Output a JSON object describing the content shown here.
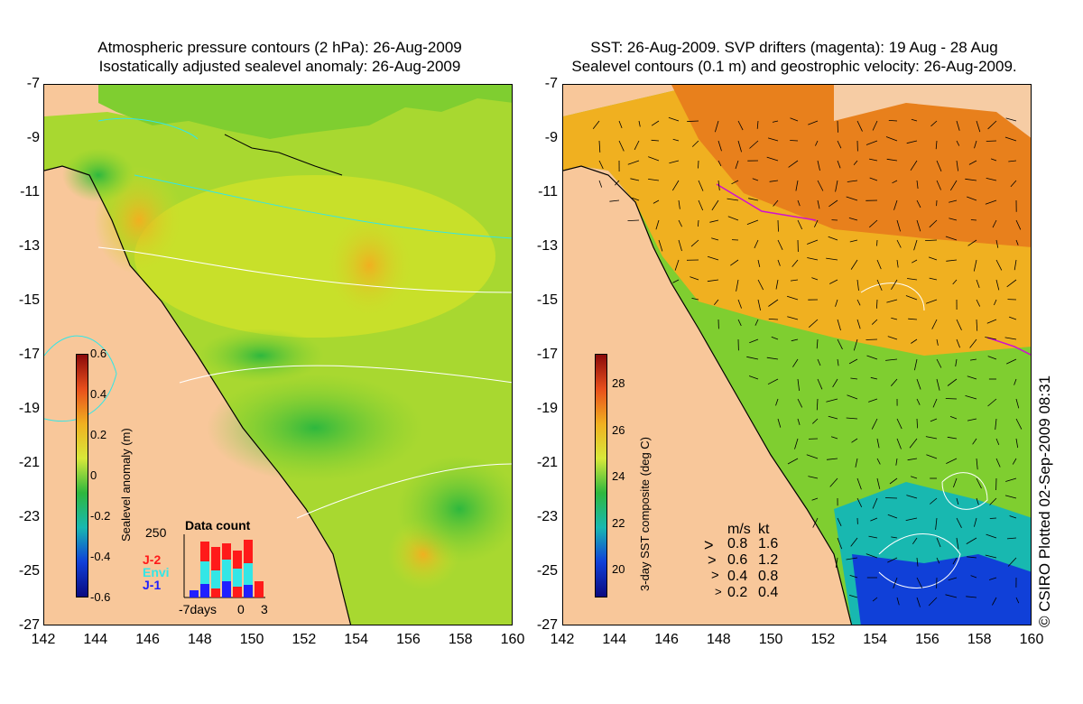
{
  "left_panel": {
    "title_line1": "Atmospheric pressure contours (2 hPa): 26-Aug-2009",
    "title_line2": "Isostatically adjusted sealevel anomaly: 26-Aug-2009",
    "colorbar": {
      "title": "Sealevel anomaly (m)",
      "ticks": [
        "0.6",
        "0.4",
        "0.2",
        "0",
        "-0.2",
        "-0.4",
        "-0.6"
      ],
      "colors": [
        "#8b0a0a",
        "#e8501c",
        "#f0b020",
        "#d8e83a",
        "#2eb83e",
        "#18b8b0",
        "#1040d8",
        "#0a0a80"
      ]
    },
    "data_count": {
      "title": "Data count",
      "max_label": "250",
      "x_labels": [
        "-7days",
        "0",
        "3"
      ],
      "missions": [
        {
          "name": "J-2",
          "color": "#ff1a1a"
        },
        {
          "name": "Envi",
          "color": "#33e6e6"
        },
        {
          "name": "J-1",
          "color": "#2020ff"
        }
      ]
    }
  },
  "right_panel": {
    "title_line1": "SST: 26-Aug-2009. SVP drifters (magenta): 19 Aug - 28 Aug",
    "title_line2": "Sealevel contours (0.1 m) and geostrophic velocity: 26-Aug-2009.",
    "colorbar": {
      "title": "3-day SST composite (deg C)",
      "ticks": [
        "28",
        "26",
        "24",
        "22",
        "20"
      ],
      "colors": [
        "#8b0a0a",
        "#e8501c",
        "#f0b020",
        "#d8e83a",
        "#2eb83e",
        "#18b8b0",
        "#1040d8",
        "#0a0a80"
      ]
    },
    "velocity_legend": {
      "header_ms": "m/s",
      "header_kt": "kt",
      "rows": [
        {
          "ms": "0.8",
          "kt": "1.6"
        },
        {
          "ms": "0.6",
          "kt": "1.2"
        },
        {
          "ms": "0.4",
          "kt": "0.8"
        },
        {
          "ms": "0.2",
          "kt": "0.4"
        }
      ]
    }
  },
  "axes": {
    "y_ticks": [
      "-7",
      "-9",
      "-11",
      "-13",
      "-15",
      "-17",
      "-19",
      "-21",
      "-23",
      "-25",
      "-27"
    ],
    "x_ticks": [
      "142",
      "144",
      "146",
      "148",
      "150",
      "152",
      "154",
      "156",
      "158",
      "160"
    ]
  },
  "credit": "© CSIRO Plotted 02-Sep-2009 08:31",
  "colors": {
    "land": "#f8c79a",
    "ocean_green": "#7fce30",
    "ocean_yellow": "#c8e02a",
    "ocean_orange": "#f0b020",
    "ocean_blue": "#2fb8c0"
  }
}
